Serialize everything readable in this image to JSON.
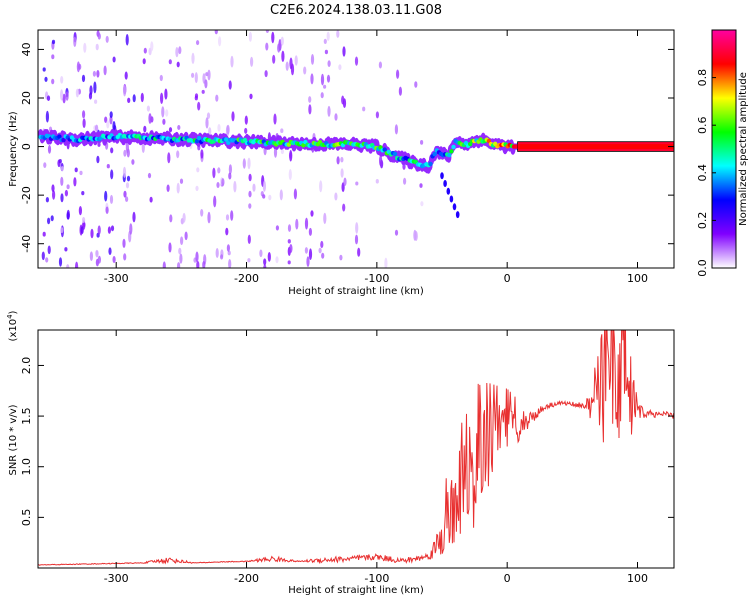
{
  "figure": {
    "title": "C2E6.2024.138.03.11.G08"
  },
  "chart_data": [
    {
      "type": "heatmap",
      "xlabel": "Height of straight line (km)",
      "ylabel": "Frequency (Hz)",
      "xlim": [
        -360,
        128
      ],
      "ylim": [
        -50,
        48
      ],
      "x_ticks": [
        -300,
        -200,
        -100,
        0,
        100
      ],
      "y_ticks": [
        -40,
        -20,
        0,
        20,
        40
      ],
      "grid": false,
      "colorbar": {
        "label": "Normalized spectral amplitude",
        "range": [
          0.0,
          1.0
        ],
        "ticks": [
          0.0,
          0.2,
          0.4,
          0.6,
          0.8
        ],
        "colormap": [
          "#ffffff",
          "#8000ff",
          "#0000ff",
          "#00ffff",
          "#00ff00",
          "#ffff00",
          "#ff0000",
          "#ff00a0"
        ]
      },
      "ridge": {
        "x": [
          -355,
          -330,
          -300,
          -250,
          -200,
          -150,
          -120,
          -100,
          -90,
          -80,
          -70,
          -60,
          -55,
          -50,
          -45,
          -40,
          -30,
          -20,
          -10,
          0,
          10,
          128
        ],
        "y": [
          4,
          3,
          4,
          3,
          2,
          1,
          1,
          0,
          -3,
          -5,
          -7,
          -8,
          -2,
          -3,
          -4,
          2,
          1,
          3,
          1,
          0,
          0,
          0
        ],
        "amplitude": [
          0.35,
          0.4,
          0.45,
          0.5,
          0.55,
          0.6,
          0.65,
          0.6,
          0.55,
          0.5,
          0.5,
          0.45,
          0.45,
          0.45,
          0.5,
          0.55,
          0.6,
          0.7,
          0.75,
          0.85,
          0.9,
          0.9
        ]
      }
    },
    {
      "type": "line",
      "xlabel": "Height of straight line (km)",
      "ylabel": "SNR (10 * v/v)",
      "y_multiplier": "(x10",
      "y_multiplier_exp": "4",
      "xlim": [
        -360,
        128
      ],
      "ylim": [
        0,
        23500
      ],
      "x_ticks": [
        -300,
        -200,
        -100,
        0,
        100
      ],
      "y_ticks": [
        5000,
        10000,
        15000,
        20000
      ],
      "y_tick_labels": [
        "0.5",
        "1.0",
        "1.5",
        "2.0"
      ],
      "grid": false,
      "series": [
        {
          "color": "#e83030",
          "x": [
            -360,
            -340,
            -320,
            -300,
            -280,
            -260,
            -240,
            -220,
            -200,
            -180,
            -160,
            -140,
            -120,
            -100,
            -90,
            -80,
            -70,
            -60,
            -55,
            -50,
            -45,
            -40,
            -35,
            -30,
            -25,
            -20,
            -15,
            -10,
            -5,
            0,
            5,
            10,
            20,
            30,
            40,
            50,
            60,
            70,
            75,
            80,
            85,
            90,
            95,
            100,
            105,
            110,
            115,
            120,
            128
          ],
          "y": [
            300,
            350,
            400,
            450,
            500,
            800,
            500,
            600,
            650,
            900,
            650,
            800,
            900,
            1100,
            900,
            700,
            900,
            1200,
            2000,
            3500,
            5000,
            7000,
            8000,
            8500,
            10000,
            11000,
            12000,
            12500,
            13000,
            13500,
            14000,
            14200,
            15000,
            16000,
            16300,
            16200,
            16000,
            16200,
            16500,
            17000,
            18000,
            17000,
            16500,
            15500,
            15200,
            15300,
            15100,
            15200,
            15000
          ],
          "noise": [
            40,
            40,
            40,
            40,
            40,
            300,
            40,
            40,
            40,
            300,
            40,
            300,
            300,
            300,
            300,
            300,
            300,
            300,
            1200,
            2500,
            3500,
            4500,
            4500,
            5000,
            6000,
            5000,
            4500,
            4000,
            3500,
            3000,
            2200,
            1500,
            600,
            300,
            200,
            200,
            300,
            3500,
            6000,
            7000,
            7000,
            6500,
            4500,
            1200,
            400,
            300,
            300,
            300,
            300
          ]
        }
      ]
    }
  ]
}
